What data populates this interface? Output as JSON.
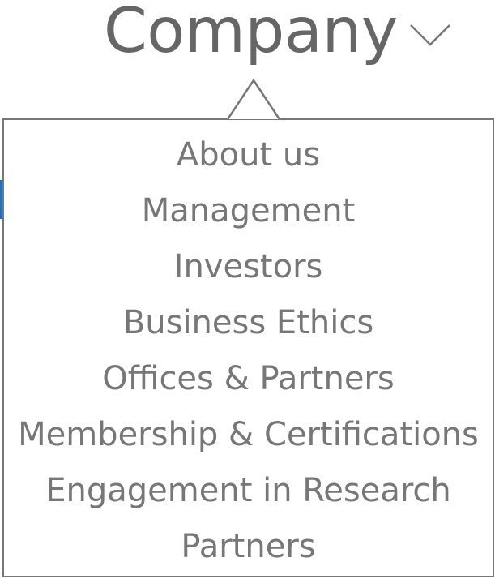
{
  "menu": {
    "title": "Company",
    "items": [
      {
        "label": "About us"
      },
      {
        "label": "Management"
      },
      {
        "label": "Investors"
      },
      {
        "label": "Business Ethics"
      },
      {
        "label": "Offices & Partners"
      },
      {
        "label": "Membership & Certifications"
      },
      {
        "label": "Engagement in Research"
      },
      {
        "label": "Partners"
      }
    ]
  },
  "colors": {
    "title_text": "#666666",
    "item_text": "#777777",
    "border": "#777777"
  },
  "icons": {
    "dropdown_toggle": "chevron-down-icon",
    "pointer": "caret-up-icon"
  }
}
